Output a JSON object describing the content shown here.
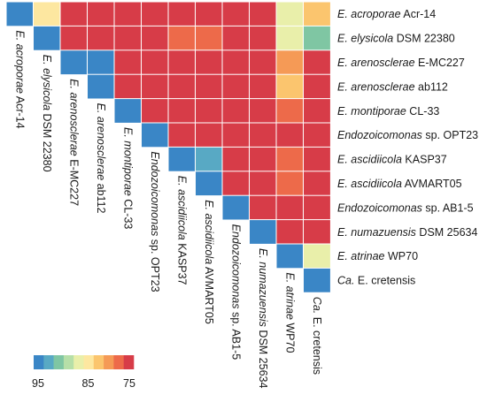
{
  "chart_data": {
    "type": "heatmap",
    "title": "",
    "layout": "upper-triangle",
    "strains": [
      {
        "epithet": "E. acroporae",
        "suffix": " Acr-14"
      },
      {
        "epithet": "E. elysicola",
        "suffix": " DSM 22380"
      },
      {
        "epithet": "E. arenosclerae",
        "suffix": " E-MC227"
      },
      {
        "epithet": "E. arenosclerae",
        "suffix": " ab112"
      },
      {
        "epithet": "E. montiporae",
        "suffix": " CL-33"
      },
      {
        "epithet": "Endozoicomonas",
        "suffix": " sp. OPT23"
      },
      {
        "epithet": "E. ascidiicola",
        "suffix": " KASP37"
      },
      {
        "epithet": "E. ascidiicola",
        "suffix": " AVMART05"
      },
      {
        "epithet": "Endozoicomonas",
        "suffix": " sp. AB1-5"
      },
      {
        "epithet": "E. numazuensis",
        "suffix": " DSM 25634"
      },
      {
        "epithet": "E. atrinae",
        "suffix": " WP70"
      },
      {
        "epithet": "Ca.",
        "suffix": " E. cretensis"
      }
    ],
    "matrix": [
      [
        97,
        83,
        75,
        75,
        75,
        75,
        75,
        75,
        75,
        75,
        86,
        82
      ],
      [
        null,
        97,
        75,
        75,
        75,
        76,
        77,
        77,
        75,
        75,
        86,
        90
      ],
      [
        null,
        null,
        97,
        94,
        75,
        76,
        75,
        75,
        75,
        75,
        80,
        75
      ],
      [
        null,
        null,
        null,
        97,
        75,
        75,
        75,
        75,
        75,
        75,
        81,
        75
      ],
      [
        null,
        null,
        null,
        null,
        97,
        76,
        75,
        75,
        75,
        75,
        77,
        75
      ],
      [
        null,
        null,
        null,
        null,
        null,
        97,
        75,
        75,
        75,
        75,
        75,
        75
      ],
      [
        null,
        null,
        null,
        null,
        null,
        null,
        97,
        93,
        75,
        75,
        77,
        76
      ],
      [
        null,
        null,
        null,
        null,
        null,
        null,
        null,
        97,
        75,
        75,
        77,
        76
      ],
      [
        null,
        null,
        null,
        null,
        null,
        null,
        null,
        null,
        97,
        75,
        76,
        75
      ],
      [
        null,
        null,
        null,
        null,
        null,
        null,
        null,
        null,
        null,
        97,
        76,
        75
      ],
      [
        null,
        null,
        null,
        null,
        null,
        null,
        null,
        null,
        null,
        null,
        97,
        86
      ],
      [
        null,
        null,
        null,
        null,
        null,
        null,
        null,
        null,
        null,
        null,
        null,
        97
      ]
    ],
    "color_range": [
      95,
      75
    ],
    "legend": {
      "colors": [
        "#3a86c6",
        "#58a9c4",
        "#7fc6a3",
        "#b6dfa8",
        "#e9efaa",
        "#fde7a0",
        "#fbc56e",
        "#f59a56",
        "#ed6a4a",
        "#d73c48"
      ],
      "ticks": [
        "95",
        "85",
        "75"
      ]
    },
    "palette": {
      "high": "#3a86c6",
      "low": "#d73c48"
    }
  }
}
